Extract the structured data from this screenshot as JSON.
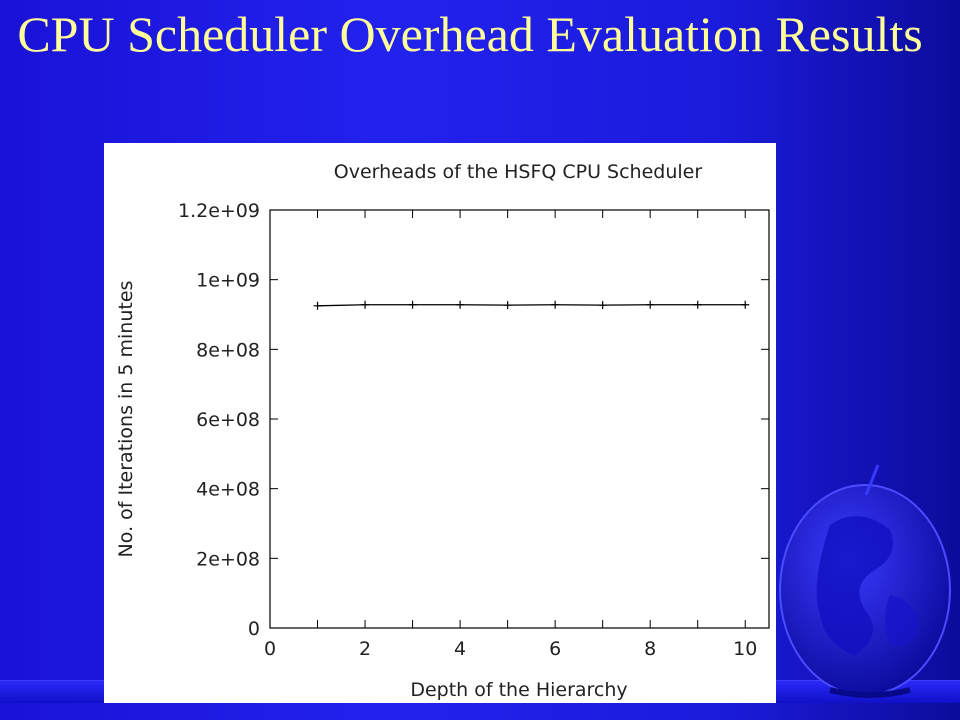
{
  "slide": {
    "title": "CPU Scheduler Overhead Evaluation Results"
  },
  "colors": {
    "background": "#1f1fe6",
    "title": "#ffff99",
    "plot_line": "#000000"
  },
  "decoration": {
    "icon": "globe-icon"
  },
  "chart_data": {
    "type": "line",
    "title": "Overheads of the HSFQ CPU Scheduler",
    "xlabel": "Depth of the Hierarchy",
    "ylabel": "No. of Iterations in 5 minutes",
    "xlim": [
      0,
      10.5
    ],
    "ylim": [
      0,
      1200000000
    ],
    "xticks": [
      0,
      2,
      4,
      6,
      8,
      10
    ],
    "xtick_labels": [
      "0",
      "2",
      "4",
      "6",
      "8",
      "10"
    ],
    "yticks": [
      0,
      200000000,
      400000000,
      600000000,
      800000000,
      1000000000,
      1200000000
    ],
    "ytick_labels": [
      "0",
      "2e+08",
      "4e+08",
      "6e+08",
      "8e+08",
      "1e+09",
      "1.2e+09"
    ],
    "grid": false,
    "series": [
      {
        "x": [
          1,
          2,
          3,
          4,
          5,
          6,
          7,
          8,
          9,
          10
        ],
        "y": [
          925000000,
          928000000,
          928000000,
          928000000,
          927000000,
          928000000,
          927000000,
          928000000,
          928000000,
          928000000
        ]
      }
    ]
  }
}
